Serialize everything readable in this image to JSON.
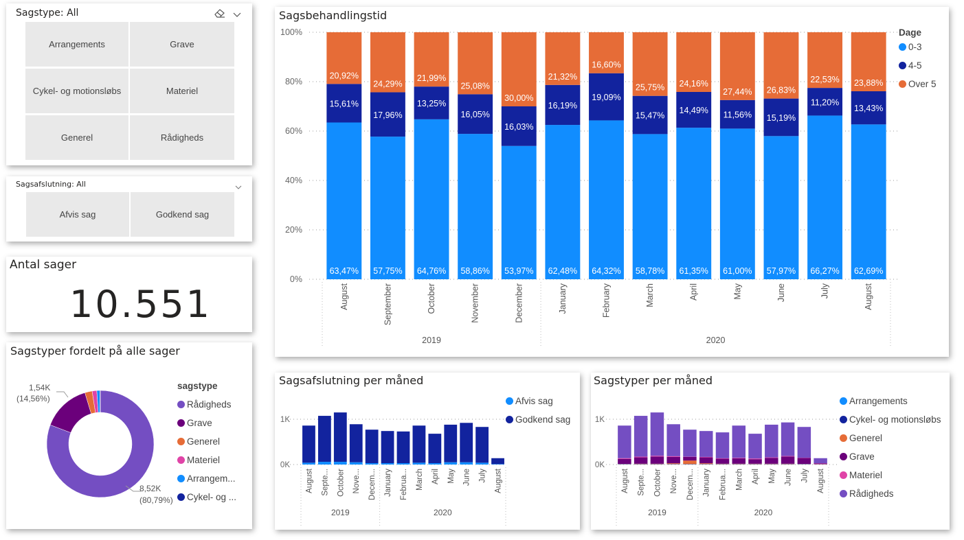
{
  "slicer_sagstype": {
    "title": "Sagstype: All",
    "clear_icon": "eraser-icon",
    "expand_icon": "chevron-down-icon",
    "options": [
      "Arrangements",
      "Grave",
      "Cykel- og motionsløbs",
      "Materiel",
      "Generel",
      "Rådigheds"
    ]
  },
  "slicer_sagsafslutning": {
    "title": "Sagsafslutning: All",
    "expand_icon": "chevron-down-icon",
    "options": [
      "Afvis sag",
      "Godkend sag"
    ]
  },
  "kpi": {
    "title": "Antal sager",
    "value": "10.551"
  },
  "colors": {
    "c0_3": "#118DFF",
    "c4_5": "#12239E",
    "over5": "#E66C37",
    "raadigheds": "#744EC2",
    "grave": "#6B007B",
    "generel": "#E66C37",
    "materiel": "#E044A7",
    "arrangements": "#118DFF",
    "cykel": "#12239E"
  },
  "donut": {
    "title": "Sagstyper fordelt på alle sager",
    "legend_title": "sagstype",
    "legend": [
      "Rådigheds",
      "Grave",
      "Generel",
      "Materiel",
      "Arrangem...",
      "Cykel- og ..."
    ],
    "labels": [
      {
        "value": "1,54K",
        "pct": "(14,56%)"
      },
      {
        "value": "8,52K",
        "pct": "(80,79%)"
      }
    ]
  },
  "chart_data": [
    {
      "type": "bar",
      "stacked": "100%",
      "title": "Sagsbehandlingstid",
      "legend_title": "Dage",
      "legend_position": "top-right",
      "categories": [
        "August",
        "September",
        "October",
        "November",
        "December",
        "January",
        "February",
        "March",
        "April",
        "May",
        "June",
        "July",
        "August"
      ],
      "years": [
        {
          "label": "2019",
          "span": 5
        },
        {
          "label": "2020",
          "span": 8
        }
      ],
      "yticks": [
        "0%",
        "20%",
        "40%",
        "60%",
        "80%",
        "100%"
      ],
      "ylim": [
        0,
        100
      ],
      "series": [
        {
          "name": "0-3",
          "values": [
            63.47,
            57.75,
            64.76,
            58.86,
            53.97,
            62.48,
            64.32,
            58.78,
            61.35,
            61.0,
            57.97,
            66.27,
            62.69
          ],
          "labels": [
            "63,47%",
            "57,75%",
            "64,76%",
            "58,86%",
            "53,97%",
            "62,48%",
            "64,32%",
            "58,78%",
            "61,35%",
            "61,00%",
            "57,97%",
            "66,27%",
            "62,69%"
          ]
        },
        {
          "name": "4-5",
          "values": [
            15.61,
            17.96,
            13.25,
            16.05,
            16.03,
            16.19,
            19.09,
            15.47,
            14.49,
            11.56,
            15.19,
            11.2,
            13.43
          ],
          "labels": [
            "15,61%",
            "17,96%",
            "13,25%",
            "16,05%",
            "16,03%",
            "16,19%",
            "19,09%",
            "15,47%",
            "14,49%",
            "11,56%",
            "15,19%",
            "11,20%",
            "13,43%"
          ]
        },
        {
          "name": "Over 5",
          "values": [
            20.92,
            24.29,
            21.99,
            25.08,
            30.0,
            21.32,
            16.6,
            25.75,
            24.16,
            27.44,
            26.83,
            22.53,
            23.88
          ],
          "labels": [
            "20,92%",
            "24,29%",
            "21,99%",
            "25,08%",
            "30,00%",
            "21,32%",
            "16,60%",
            "25,75%",
            "24,16%",
            "27,44%",
            "26,83%",
            "22,53%",
            "23,88%"
          ]
        }
      ]
    },
    {
      "type": "bar",
      "stacked": true,
      "title": "Sagsafslutning per måned",
      "legend_position": "top-right",
      "categories": [
        "August",
        "Septe...",
        "October",
        "Nove...",
        "Decem...",
        "January",
        "Februa...",
        "March",
        "April",
        "May",
        "June",
        "July",
        "August"
      ],
      "years": [
        {
          "label": "2019",
          "span": 5
        },
        {
          "label": "2020",
          "span": 8
        }
      ],
      "yticks": [
        "0K",
        "1K"
      ],
      "ylim": [
        0,
        1000
      ],
      "series": [
        {
          "name": "Afvis sag",
          "values": [
            40,
            60,
            60,
            50,
            30,
            30,
            30,
            40,
            30,
            50,
            50,
            40,
            10
          ]
        },
        {
          "name": "Godkend sag",
          "values": [
            820,
            1015,
            1090,
            840,
            740,
            710,
            700,
            820,
            650,
            830,
            870,
            790,
            130
          ]
        }
      ]
    },
    {
      "type": "bar",
      "stacked": true,
      "title": "Sagstyper per måned",
      "legend_position": "top-right",
      "categories": [
        "August",
        "Septe...",
        "October",
        "Nove...",
        "Decem...",
        "January",
        "Februa...",
        "March",
        "April",
        "May",
        "June",
        "July",
        "August"
      ],
      "years": [
        {
          "label": "2019",
          "span": 5
        },
        {
          "label": "2020",
          "span": 8
        }
      ],
      "yticks": [
        "0K",
        "1K"
      ],
      "ylim": [
        0,
        1000
      ],
      "series": [
        {
          "name": "Arrangements",
          "values": [
            5,
            5,
            5,
            5,
            5,
            5,
            5,
            5,
            5,
            5,
            5,
            5,
            2
          ]
        },
        {
          "name": "Cykel- og motionsløbs",
          "values": [
            5,
            3,
            3,
            3,
            3,
            3,
            3,
            3,
            3,
            3,
            3,
            5,
            2
          ]
        },
        {
          "name": "Generel",
          "values": [
            5,
            10,
            10,
            20,
            80,
            20,
            10,
            10,
            10,
            10,
            10,
            5,
            5
          ]
        },
        {
          "name": "Grave",
          "values": [
            110,
            140,
            160,
            140,
            80,
            130,
            110,
            120,
            100,
            130,
            160,
            130,
            15
          ]
        },
        {
          "name": "Materiel",
          "values": [
            15,
            15,
            15,
            15,
            5,
            10,
            10,
            10,
            15,
            10,
            10,
            5,
            5
          ]
        },
        {
          "name": "Rådigheds",
          "values": [
            720,
            902,
            957,
            707,
            597,
            572,
            572,
            712,
            547,
            722,
            742,
            680,
            111
          ]
        }
      ]
    }
  ]
}
